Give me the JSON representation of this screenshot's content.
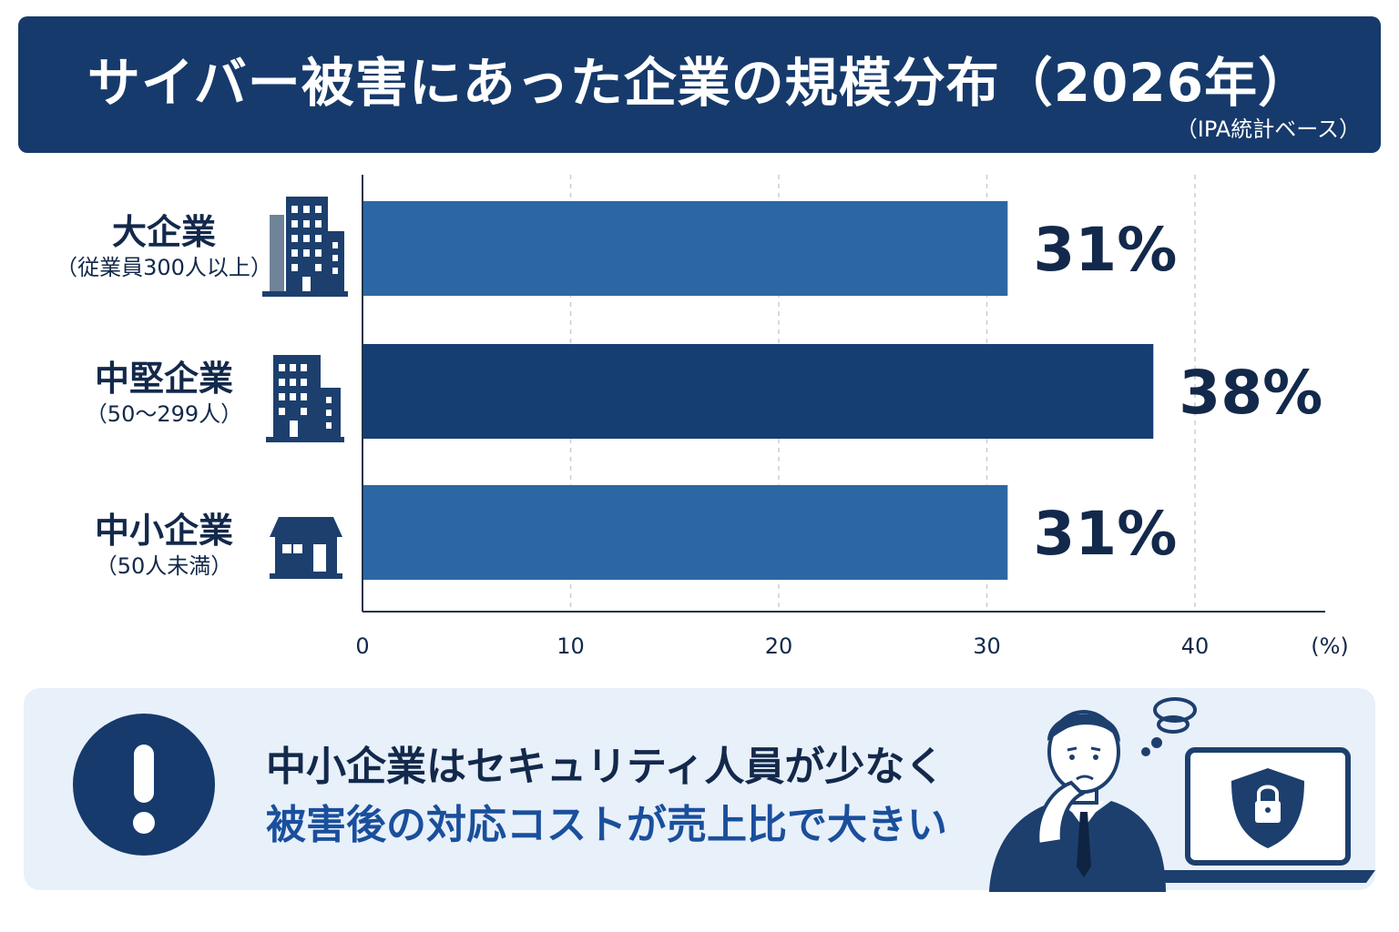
{
  "header": {
    "title": "サイバー被害にあった企業の規模分布（2026年）",
    "subtitle": "（IPA統計ベース）"
  },
  "colors": {
    "banner": "#163a6b",
    "bar_light": "#2d67a3",
    "bar_dark": "#153e72",
    "text_dark": "#13294b",
    "callout_bg": "#e8f0fa",
    "highlight_text": "#1a4f9c"
  },
  "categories_meta": [
    {
      "name": "大企業",
      "sub": "（従業員300人以上）",
      "icon": "office-tower-icon"
    },
    {
      "name": "中堅企業",
      "sub": "（50〜299人）",
      "icon": "office-building-icon"
    },
    {
      "name": "中小企業",
      "sub": "（50人未満）",
      "icon": "shop-icon"
    }
  ],
  "chart_data": {
    "type": "bar",
    "orientation": "horizontal",
    "categories": [
      "大企業",
      "中堅企業",
      "中小企業"
    ],
    "values": [
      31,
      38,
      31
    ],
    "value_labels": [
      "31%",
      "38%",
      "31%"
    ],
    "xlim": [
      0,
      45
    ],
    "xticks": [
      0,
      10,
      20,
      30,
      40
    ],
    "xtick_labels": [
      "0",
      "10",
      "20",
      "30",
      "40"
    ],
    "xunit": "(%)",
    "grid": "vertical-dashed"
  },
  "callout": {
    "line1": "中小企業はセキュリティ人員が少なく",
    "line2": "被害後の対応コストが売上比で大きい",
    "icon": "exclamation-icon",
    "illustration": "worried-businessman-laptop-lock-icon"
  }
}
